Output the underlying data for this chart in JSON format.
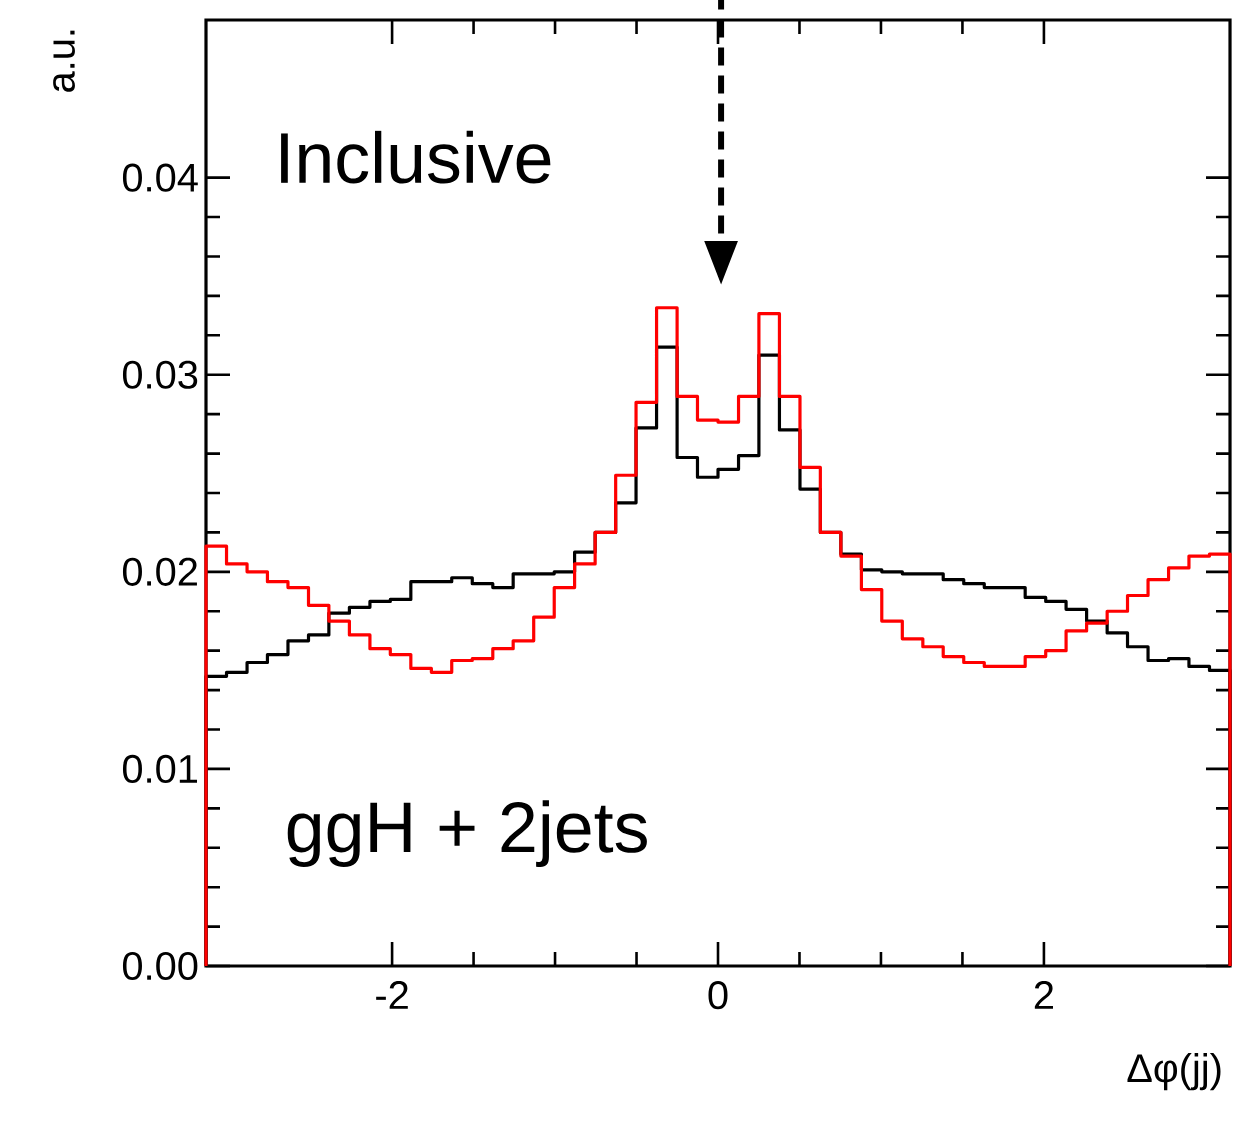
{
  "chart_data": {
    "type": "histogram",
    "xlabel": "Δφ(jj)",
    "ylabel": "a.u.",
    "annotations": [
      "Inclusive",
      "ggH + 2jets"
    ],
    "bins": [
      -3.142,
      -3.016,
      -2.89,
      -2.765,
      -2.639,
      -2.513,
      -2.388,
      -2.262,
      -2.136,
      -2.011,
      -1.885,
      -1.759,
      -1.634,
      -1.508,
      -1.382,
      -1.257,
      -1.131,
      -1.005,
      -0.88,
      -0.754,
      -0.628,
      -0.503,
      -0.377,
      -0.251,
      -0.126,
      0,
      0.126,
      0.251,
      0.377,
      0.503,
      0.628,
      0.754,
      0.88,
      1.005,
      1.131,
      1.257,
      1.382,
      1.508,
      1.634,
      1.759,
      1.885,
      2.011,
      2.136,
      2.262,
      2.388,
      2.513,
      2.639,
      2.765,
      2.89,
      3.016,
      3.142
    ],
    "series": [
      {
        "color": "#000000",
        "values": [
          0.0147,
          0.0149,
          0.0154,
          0.0158,
          0.0165,
          0.0168,
          0.0179,
          0.0182,
          0.0185,
          0.0186,
          0.0195,
          0.0195,
          0.0197,
          0.0194,
          0.0192,
          0.0199,
          0.0199,
          0.02,
          0.021,
          0.022,
          0.0235,
          0.0273,
          0.0314,
          0.0258,
          0.0248,
          0.0252,
          0.0259,
          0.031,
          0.0272,
          0.0242,
          0.022,
          0.0209,
          0.0201,
          0.02,
          0.0199,
          0.0199,
          0.0196,
          0.0194,
          0.0192,
          0.0192,
          0.0187,
          0.0185,
          0.0181,
          0.0175,
          0.0169,
          0.0162,
          0.0155,
          0.0156,
          0.0152,
          0.015
        ]
      },
      {
        "color": "#ff0000",
        "values": [
          0.0213,
          0.0204,
          0.02,
          0.0195,
          0.0192,
          0.0183,
          0.0175,
          0.0168,
          0.0161,
          0.0158,
          0.0151,
          0.0149,
          0.0155,
          0.0156,
          0.0161,
          0.0165,
          0.0177,
          0.0192,
          0.0204,
          0.022,
          0.0249,
          0.0286,
          0.0334,
          0.0289,
          0.0277,
          0.0276,
          0.0289,
          0.0331,
          0.0289,
          0.0253,
          0.022,
          0.0208,
          0.0191,
          0.0175,
          0.0166,
          0.0162,
          0.0157,
          0.0154,
          0.0152,
          0.0152,
          0.0157,
          0.016,
          0.017,
          0.0174,
          0.018,
          0.0188,
          0.0196,
          0.0202,
          0.0208,
          0.0209
        ]
      }
    ],
    "xlim": [
      -3.142,
      3.142
    ],
    "ylim": [
      0,
      0.048
    ],
    "xticks": [
      -2,
      0,
      2
    ],
    "yticks": [
      {
        "value": 0,
        "label": "0.00"
      },
      {
        "value": 0.01,
        "label": "0.01"
      },
      {
        "value": 0.02,
        "label": "0.02"
      },
      {
        "value": 0.03,
        "label": "0.03"
      },
      {
        "value": 0.04,
        "label": "0.04"
      }
    ],
    "grid": false
  }
}
